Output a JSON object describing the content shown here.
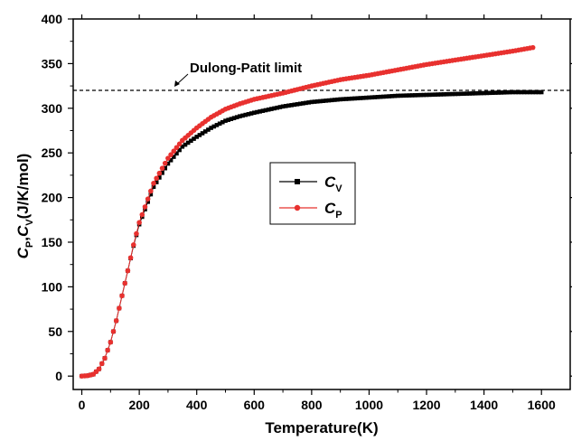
{
  "chart_data": {
    "type": "scatter",
    "xlabel": "Temperature(K)",
    "ylabel": {
      "parts": [
        {
          "text": "C",
          "italic": true
        },
        {
          "text": "P",
          "sub": true
        },
        {
          "text": ",",
          "italic": false
        },
        {
          "text": "C",
          "italic": true
        },
        {
          "text": "V",
          "sub": true
        },
        {
          "text": "(J/K/mol)",
          "italic": false
        }
      ]
    },
    "xlim": [
      -30,
      1700
    ],
    "ylim": [
      -15,
      400
    ],
    "xticks": [
      0,
      200,
      400,
      600,
      800,
      1000,
      1200,
      1400,
      1600
    ],
    "xtick_labels": [
      "0",
      "200",
      "400",
      "600",
      "800",
      "1000",
      "1200",
      "1400",
      "1600"
    ],
    "yticks": [
      0,
      50,
      100,
      150,
      200,
      250,
      300,
      350,
      400
    ],
    "ytick_labels": [
      "0",
      "50",
      "100",
      "150",
      "200",
      "250",
      "300",
      "350",
      "400"
    ],
    "grid": false,
    "legend_position": "center",
    "reference_line": {
      "y": 320,
      "label": "Dulong-Patit limit",
      "style": "dashed"
    },
    "series": [
      {
        "name": "Cv",
        "name_main": "C",
        "name_sub": "V",
        "color": "#000000",
        "marker": "square",
        "x": [
          0,
          20,
          40,
          60,
          80,
          100,
          120,
          140,
          160,
          180,
          200,
          250,
          300,
          350,
          400,
          450,
          500,
          550,
          600,
          700,
          800,
          900,
          1000,
          1100,
          1200,
          1300,
          1400,
          1500,
          1600
        ],
        "y": [
          0,
          0.5,
          2,
          8,
          20,
          38,
          62,
          90,
          118,
          146,
          170,
          212,
          238,
          257,
          268,
          278,
          286,
          291,
          295,
          302,
          307,
          310,
          312,
          314,
          315,
          316,
          317,
          318,
          318
        ]
      },
      {
        "name": "Cp",
        "name_main": "C",
        "name_sub": "P",
        "color": "#e8312f",
        "marker": "circle",
        "x": [
          0,
          20,
          40,
          60,
          80,
          100,
          120,
          140,
          160,
          180,
          200,
          250,
          300,
          350,
          400,
          450,
          500,
          550,
          600,
          700,
          800,
          900,
          1000,
          1100,
          1200,
          1300,
          1400,
          1500,
          1570
        ],
        "y": [
          0,
          0.5,
          2,
          8,
          20,
          38,
          62,
          90,
          118,
          147,
          172,
          216,
          244,
          264,
          278,
          290,
          299,
          305,
          310,
          317,
          325,
          332,
          337,
          343,
          349,
          354,
          359,
          364,
          368
        ]
      }
    ]
  }
}
